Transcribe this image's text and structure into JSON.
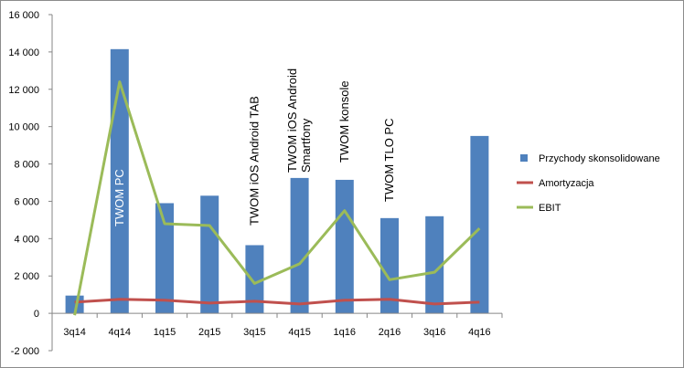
{
  "chart_data": {
    "type": "bar",
    "categories": [
      "3q14",
      "4q14",
      "1q15",
      "2q15",
      "3q15",
      "4q15",
      "1q16",
      "2q16",
      "3q16",
      "4q16"
    ],
    "series": [
      {
        "name": "Przychody skonsolidowane",
        "kind": "bar",
        "color": "#4f81bd",
        "values": [
          950,
          14150,
          5900,
          6300,
          3650,
          7250,
          7150,
          5100,
          5200,
          9500
        ]
      },
      {
        "name": "Amortyzacja",
        "kind": "line",
        "color": "#c0504d",
        "values": [
          600,
          750,
          700,
          550,
          650,
          500,
          700,
          750,
          500,
          600
        ]
      },
      {
        "name": "EBIT",
        "kind": "line",
        "color": "#9bbb59",
        "values": [
          -100,
          12400,
          4800,
          4700,
          1600,
          2650,
          5500,
          1800,
          2200,
          4550
        ]
      }
    ],
    "ylim": [
      -2000,
      16000
    ],
    "ytick_step": 2000,
    "ytick_labels": [
      "-2 000",
      "0",
      "2 000",
      "4 000",
      "6 000",
      "8 000",
      "10 000",
      "12 000",
      "14 000",
      "16 000"
    ],
    "grid": false,
    "legend_position": "right",
    "annotations": [
      {
        "category": "4q14",
        "lines": [
          "TWOM PC"
        ],
        "color": "#ffffff"
      },
      {
        "category": "3q15",
        "lines": [
          "TWOM iOS Android TAB"
        ],
        "color": "#000000"
      },
      {
        "category": "4q15",
        "lines": [
          "TWOM iOS Android",
          "Smartfony"
        ],
        "color": "#000000"
      },
      {
        "category": "1q16",
        "lines": [
          "TWOM konsole"
        ],
        "color": "#000000"
      },
      {
        "category": "2q16",
        "lines": [
          "TWOM TLO  PC"
        ],
        "color": "#000000"
      }
    ]
  }
}
